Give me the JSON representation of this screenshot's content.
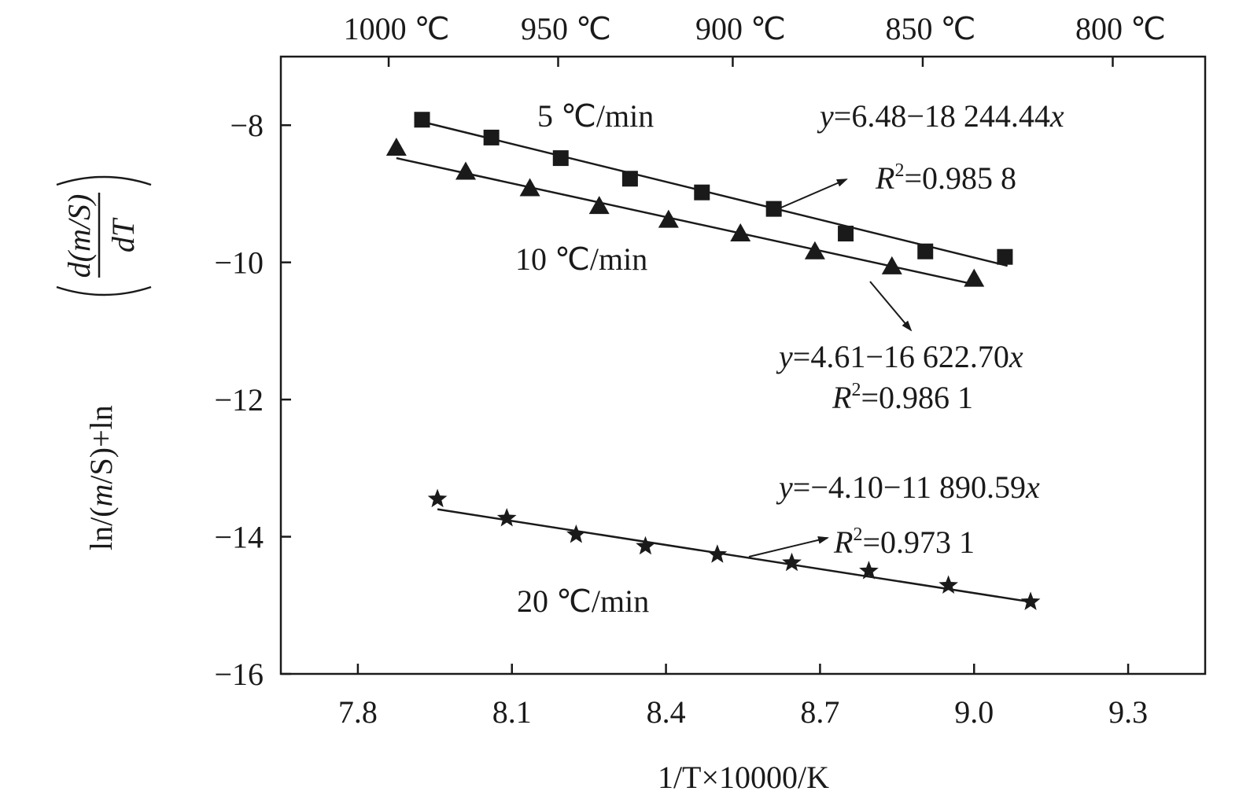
{
  "chart_data": {
    "type": "scatter",
    "xlabel": "1/T×10000/K",
    "ylabel": {
      "prefix": "ln/(",
      "m1": "m",
      "mid1": "/S)+ln",
      "numerator": "d(m/S)",
      "denominator": "dT"
    },
    "xlim": [
      7.65,
      9.45
    ],
    "ylim": [
      -16,
      -7.0
    ],
    "xticks": [
      7.8,
      8.1,
      8.4,
      8.7,
      9.0,
      9.3
    ],
    "xtick_labels": [
      "7.8",
      "8.1",
      "8.4",
      "8.7",
      "9.0",
      "9.3"
    ],
    "yticks": [
      -8,
      -10,
      -12,
      -14,
      -16
    ],
    "ytick_labels": [
      "−8",
      "−10",
      "−12",
      "−14",
      "−16"
    ],
    "top_axis": {
      "ticks": [
        7.86,
        8.19,
        8.53,
        8.9,
        9.27
      ],
      "labels": [
        "1000 ℃",
        "950 ℃",
        "900 ℃",
        "850 ℃",
        "800 ℃"
      ]
    },
    "series": [
      {
        "name": "5 ℃/min",
        "marker": "square",
        "x": [
          7.925,
          8.06,
          8.195,
          8.33,
          8.47,
          8.61,
          8.75,
          8.905,
          9.06
        ],
        "y": [
          -7.92,
          -8.18,
          -8.48,
          -8.78,
          -8.98,
          -9.22,
          -9.58,
          -9.84,
          -9.92
        ],
        "fit": {
          "x": [
            7.925,
            9.065
          ],
          "y": [
            -7.95,
            -10.05
          ]
        }
      },
      {
        "name": "10 ℃/min",
        "marker": "triangle",
        "x": [
          7.875,
          8.01,
          8.135,
          8.27,
          8.405,
          8.545,
          8.69,
          8.84,
          9.0
        ],
        "y": [
          -8.33,
          -8.68,
          -8.92,
          -9.18,
          -9.38,
          -9.58,
          -9.84,
          -10.06,
          -10.24
        ],
        "fit": {
          "x": [
            7.875,
            9.0
          ],
          "y": [
            -8.48,
            -10.32
          ]
        }
      },
      {
        "name": "20 ℃/min",
        "marker": "star",
        "x": [
          7.955,
          8.09,
          8.225,
          8.36,
          8.5,
          8.645,
          8.795,
          8.95,
          9.11
        ],
        "y": [
          -13.45,
          -13.73,
          -13.97,
          -14.14,
          -14.26,
          -14.38,
          -14.5,
          -14.71,
          -14.95
        ],
        "fit": {
          "x": [
            7.955,
            9.11
          ],
          "y": [
            -13.6,
            -14.95
          ]
        }
      }
    ],
    "annotations": {
      "rate5": "5 ℃/min",
      "rate10": "10 ℃/min",
      "rate20": "20 ℃/min",
      "eq5_y": "y",
      "eq5_rest": "=6.48−18 244.44",
      "eq5_x": "x",
      "r5_R": "R",
      "r5_sup": "2",
      "r5_rest": "=0.985 8",
      "eq10_y": "y",
      "eq10_rest": "=4.61−16 622.70",
      "eq10_x": "x",
      "r10_R": "R",
      "r10_sup": "2",
      "r10_rest": "=0.986 1",
      "eq20_y": "y",
      "eq20_rest": "=−4.10−11 890.59",
      "eq20_x": "x",
      "r20_R": "R",
      "r20_sup": "2",
      "r20_rest": "=0.973 1"
    }
  }
}
